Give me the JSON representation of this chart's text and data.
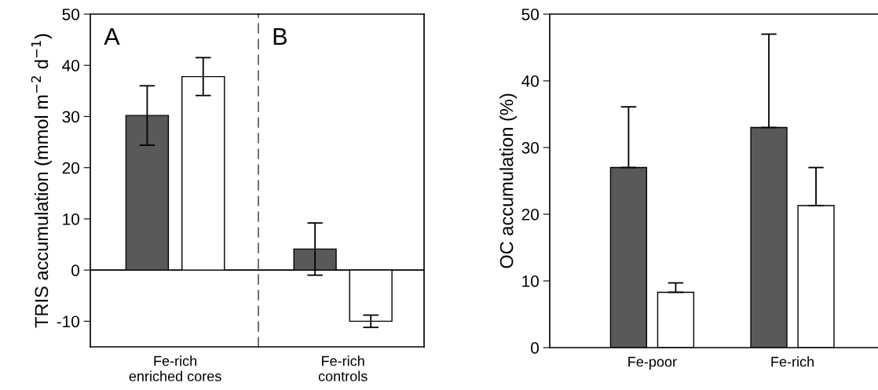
{
  "chart_data": [
    {
      "type": "bar",
      "ylabel": "TRIS accumulation (mmol m$^{−2}$ d$^{−1}$)",
      "categories": [
        "Fe-rich\nenriched cores"
      ],
      "series": [
        {
          "color": "#595959",
          "values": [
            30.2
          ],
          "errors": [
            5.8
          ]
        },
        {
          "color": "#ffffff",
          "values": [
            37.8
          ],
          "errors": [
            3.7
          ]
        }
      ],
      "ylim": [
        -15,
        50
      ],
      "yticks": [
        -10,
        0,
        10,
        20,
        30,
        40,
        50
      ],
      "grid": false,
      "legend": false,
      "ref_lines": [
        {
          "axis": "y",
          "value": 0,
          "line_style": "solid"
        }
      ],
      "annotations": [
        "A"
      ]
    },
    {
      "type": "bar",
      "categories": [
        "Fe-rich\ncontrols"
      ],
      "series": [
        {
          "color": "#595959",
          "values": [
            4.1
          ],
          "errors": [
            5.1
          ]
        },
        {
          "color": "#ffffff",
          "values": [
            -10
          ],
          "errors": [
            1.2
          ]
        }
      ],
      "ylim": [
        -15,
        50
      ],
      "tick_labels": "x",
      "grid": false,
      "legend": false,
      "ref_lines": [
        {
          "axis": "y",
          "value": 0,
          "line_style": "solid"
        }
      ],
      "annotations": [
        "B"
      ]
    },
    {
      "type": "bar",
      "ylabel": "OC accumulation (%)",
      "categories": [
        "Fe-poor",
        "Fe-rich"
      ],
      "series": [
        {
          "color": "#595959",
          "values": [
            27,
            33
          ],
          "errors": [
            [
              27,
              36.1
            ],
            [
              33,
              47
            ]
          ]
        },
        {
          "color": "#ffffff",
          "values": [
            8.3,
            21.3
          ],
          "errors": [
            [
              8.3,
              9.7
            ],
            [
              21.3,
              27
            ]
          ]
        }
      ],
      "ylim": [
        0,
        50
      ],
      "yticks": [
        0,
        10,
        20,
        30,
        40,
        50
      ],
      "grid": false,
      "legend": false
    }
  ]
}
